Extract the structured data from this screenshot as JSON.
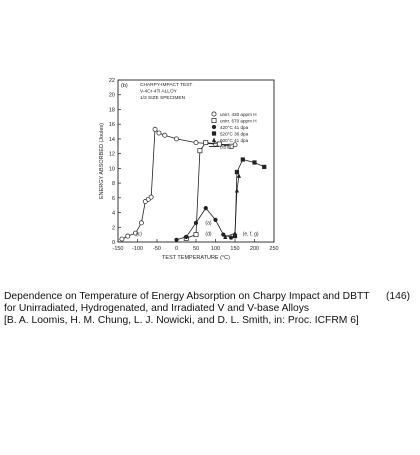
{
  "caption": {
    "line1": "Dependence on Temperature of Energy Absorption on Charpy Impact and DBTT",
    "line2": "for Unirradiated, Hydrogenated, and Irradiated V and V-base Alloys",
    "line3": "[B. A. Loomis, H. M. Chung, L. J. Nowicki, and D. L. Smith, in: Proc. ICFRM 6]",
    "figure_number": "(146)"
  },
  "chart_data": {
    "type": "line",
    "panel_label": "(b)",
    "title_lines": [
      "CHARPY-IMPACT TEST",
      "V-4Cr-4Ti ALLOY",
      "1/3 SIZE SPECIMEN"
    ],
    "xlabel": "TEST TEMPERATURE (°C)",
    "ylabel": "ENERGY ABSORBED (Joules)",
    "xlim": [
      -150,
      250
    ],
    "ylim": [
      0,
      22
    ],
    "xticks": [
      -150,
      -100,
      -50,
      0,
      50,
      100,
      150,
      200,
      250
    ],
    "yticks": [
      0,
      2,
      4,
      6,
      8,
      10,
      12,
      14,
      16,
      18,
      20,
      22
    ],
    "legend_position": "right",
    "legend": [
      {
        "label": "unirr.  430 appm H",
        "marker": "open-circle"
      },
      {
        "label": "unirr.  670 appm H",
        "marker": "open-square"
      },
      {
        "label": "420°C 41 dpa",
        "marker": "filled-circle"
      },
      {
        "label": "520°C 36 dpa",
        "marker": "filled-square"
      },
      {
        "label": "600°C 41 dpa",
        "marker": "filled-triangle"
      },
      {
        "label": "DBTT",
        "marker": "line"
      }
    ],
    "series": [
      {
        "marker": "open-circle",
        "points": [
          [
            -140,
            0.4
          ],
          [
            -125,
            0.8
          ],
          [
            -105,
            1.2
          ],
          [
            -90,
            2.6
          ],
          [
            -80,
            5.5
          ],
          [
            -72,
            5.8
          ],
          [
            -65,
            6.1
          ],
          [
            -55,
            15.3
          ],
          [
            -45,
            14.8
          ],
          [
            -30,
            14.5
          ],
          [
            0,
            14.0
          ],
          [
            50,
            13.5
          ],
          [
            100,
            13.3
          ],
          [
            150,
            13.2
          ]
        ]
      },
      {
        "marker": "open-square",
        "points": [
          [
            25,
            0.5
          ],
          [
            50,
            1.0
          ],
          [
            60,
            12.4
          ],
          [
            75,
            13.5
          ],
          [
            110,
            13.3
          ],
          [
            140,
            13.0
          ]
        ]
      },
      {
        "marker": "filled-circle",
        "points": [
          [
            0,
            0.3
          ],
          [
            25,
            0.7
          ],
          [
            50,
            2.6
          ],
          [
            75,
            4.6
          ],
          [
            100,
            3.0
          ],
          [
            120,
            1.0
          ],
          [
            140,
            0.6
          ]
        ]
      },
      {
        "marker": "filled-square",
        "points": [
          [
            150,
            0.8
          ],
          [
            155,
            9.5
          ],
          [
            170,
            11.2
          ],
          [
            200,
            10.8
          ],
          [
            225,
            10.2
          ]
        ]
      },
      {
        "marker": "filled-triangle",
        "points": [
          [
            125,
            0.7
          ],
          [
            150,
            1.2
          ],
          [
            155,
            7.0
          ],
          [
            160,
            9.0
          ]
        ]
      }
    ],
    "annotations": [
      {
        "text": "(c)",
        "x": -96,
        "y": 0.9
      },
      {
        "text": "(d)",
        "x": 82,
        "y": 0.9
      },
      {
        "text": "(a)",
        "x": 82,
        "y": 2.4
      },
      {
        "text": "(e, f, g)",
        "x": 190,
        "y": 0.9
      }
    ]
  }
}
